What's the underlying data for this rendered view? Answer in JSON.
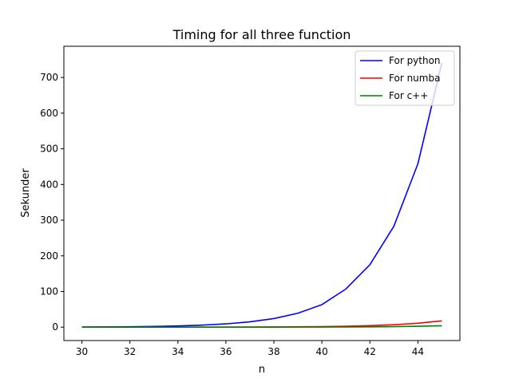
{
  "chart_data": {
    "type": "line",
    "title": "Timing for all three function",
    "xlabel": "n",
    "ylabel": "Sekunder",
    "xlim": [
      29.25,
      45.75
    ],
    "ylim": [
      -37.5,
      787.5
    ],
    "xticks": [
      30,
      32,
      34,
      36,
      38,
      40,
      42,
      44
    ],
    "yticks": [
      0,
      100,
      200,
      300,
      400,
      500,
      600,
      700
    ],
    "grid": false,
    "legend_position": "top-right",
    "x": [
      30,
      31,
      32,
      33,
      34,
      35,
      36,
      37,
      38,
      39,
      40,
      41,
      42,
      43,
      44,
      45
    ],
    "series": [
      {
        "name": "For python",
        "color": "#0000ff",
        "values": [
          0.5,
          0.8,
          1.3,
          2.1,
          3.5,
          5.7,
          9.2,
          14.9,
          24.1,
          39.0,
          63.2,
          107,
          175,
          283,
          458,
          741
        ]
      },
      {
        "name": "For numba",
        "color": "#ff0000",
        "values": [
          0.01,
          0.02,
          0.03,
          0.05,
          0.09,
          0.14,
          0.23,
          0.37,
          0.6,
          1.0,
          1.6,
          2.6,
          4.2,
          6.8,
          11.0,
          17.8
        ]
      },
      {
        "name": "For c++",
        "color": "#008000",
        "values": [
          0.003,
          0.005,
          0.008,
          0.013,
          0.021,
          0.034,
          0.055,
          0.09,
          0.14,
          0.23,
          0.37,
          0.6,
          0.97,
          1.57,
          2.54,
          4.1
        ]
      }
    ]
  }
}
